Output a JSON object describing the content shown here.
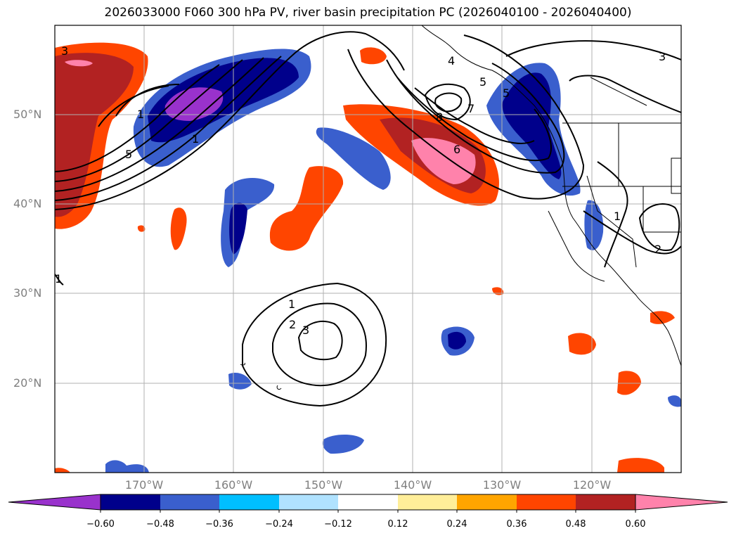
{
  "title": "2026033000 F060 300 hPa PV, river basin precipitation PC (2026040100 - 2026040400)",
  "lat_labels": [
    "50°N",
    "40°N",
    "30°N",
    "20°N"
  ],
  "lon_labels": [
    "170°W",
    "160°W",
    "150°W",
    "140°W",
    "130°W",
    "120°W"
  ],
  "colorbar": {
    "ticks": [
      "−0.60",
      "−0.48",
      "−0.36",
      "−0.24",
      "−0.12",
      "0.12",
      "0.24",
      "0.36",
      "0.48",
      "0.60"
    ],
    "colors": [
      "#9932cc",
      "#00008b",
      "#3a5fcd",
      "#00bfff",
      "#b0e2ff",
      "#ffffff",
      "#ffee99",
      "#ffa500",
      "#ff4500",
      "#b22222",
      "#ff82ab"
    ]
  },
  "contour_labels": [
    "3",
    "1",
    "5",
    "1",
    "4",
    "5",
    "7",
    "8",
    "6",
    "5",
    "3",
    "1",
    "2",
    "1",
    "2",
    "3",
    "1"
  ],
  "colors": {
    "frame": "#000000",
    "grid": "#b0b0b0",
    "axis_label": "#7f7f7f"
  }
}
